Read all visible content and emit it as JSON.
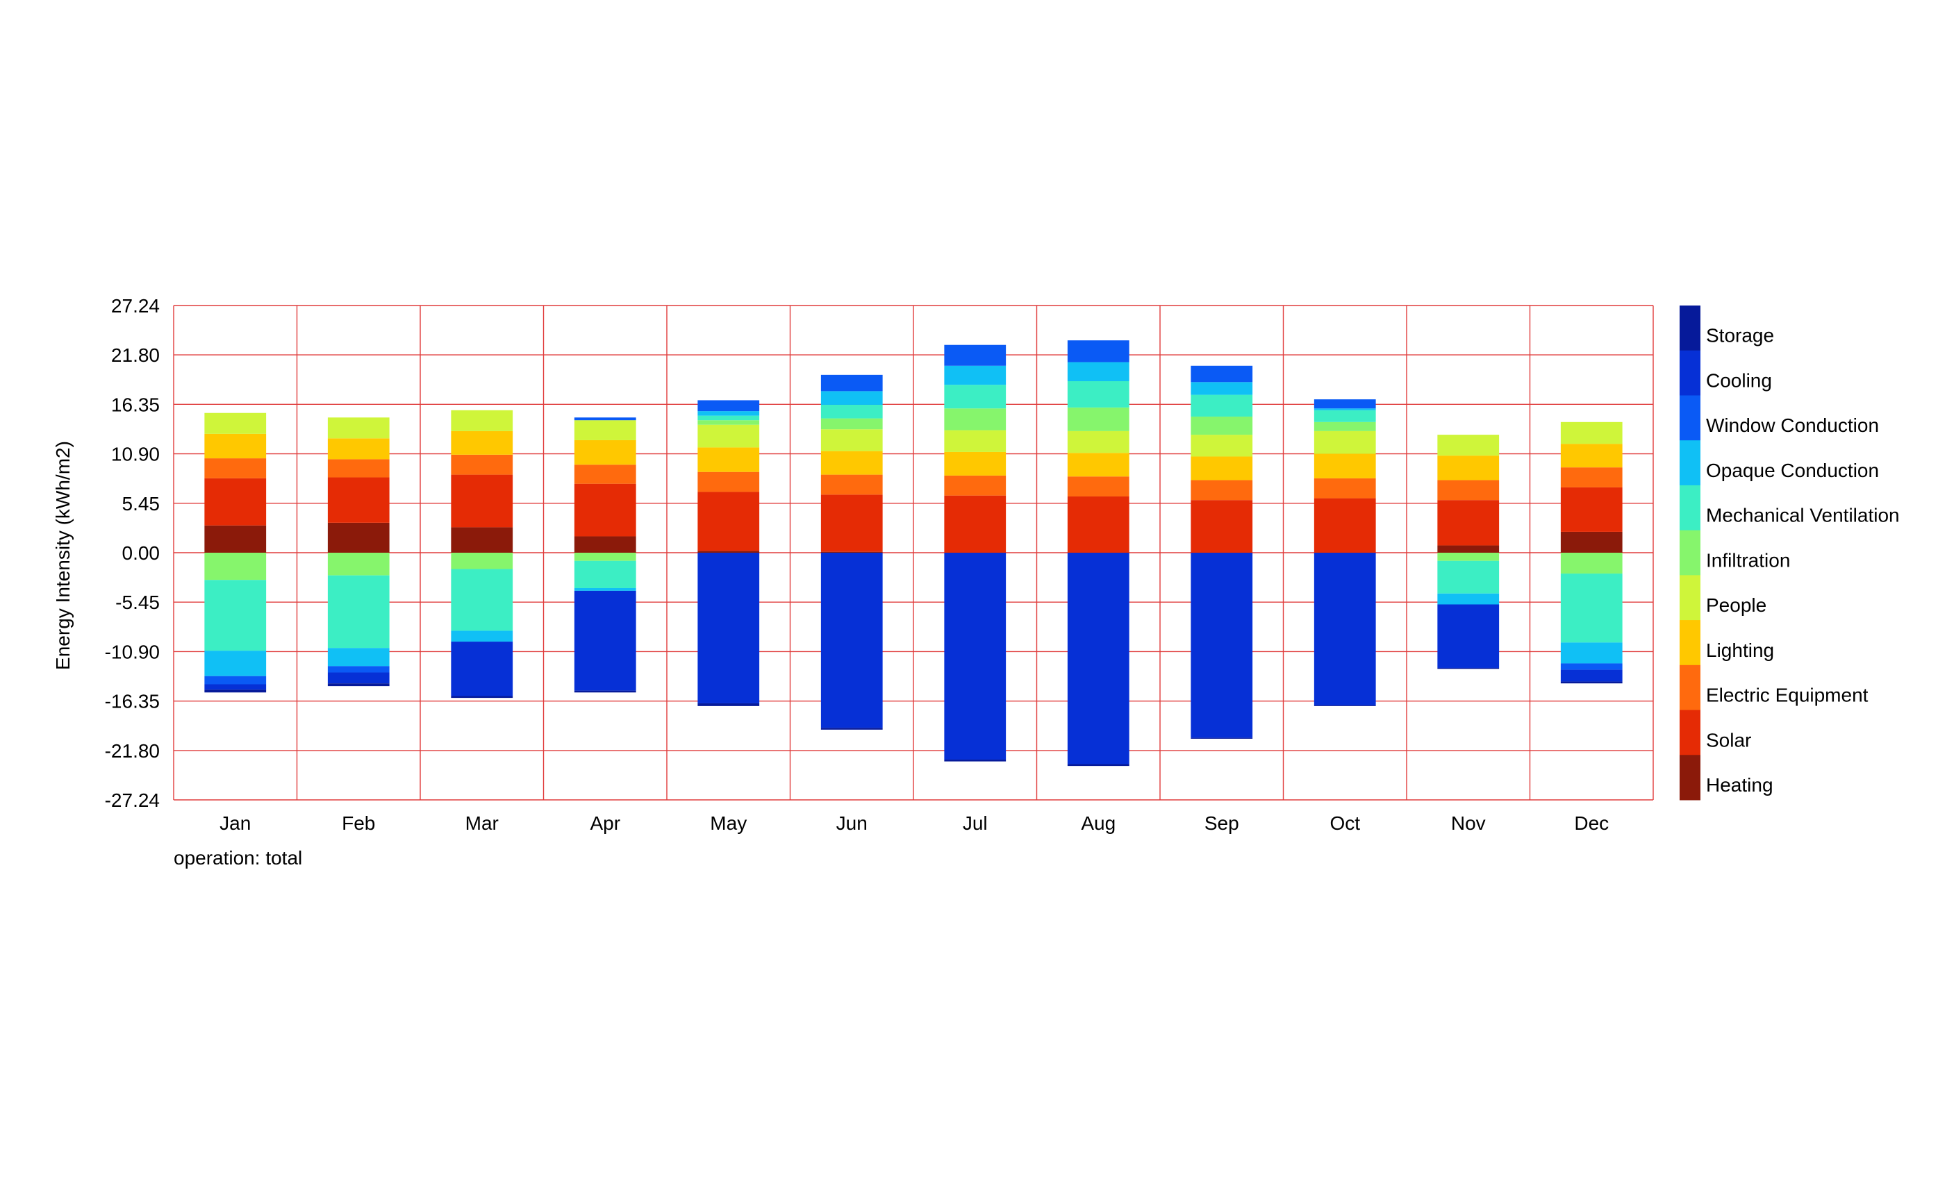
{
  "chart_data": {
    "type": "bar",
    "stacked": true,
    "title": "",
    "footnote": "operation: total",
    "xlabel": "",
    "ylabel": "Energy Intensity (kWh/m2)",
    "ylim": [
      -27.24,
      27.24
    ],
    "yticks": [
      "27.24",
      "21.80",
      "16.35",
      "10.90",
      "5.45",
      "0.00",
      "-5.45",
      "-10.90",
      "-16.35",
      "-21.80",
      "-27.24"
    ],
    "categories": [
      "Jan",
      "Feb",
      "Mar",
      "Apr",
      "May",
      "Jun",
      "Jul",
      "Aug",
      "Sep",
      "Oct",
      "Nov",
      "Dec"
    ],
    "grid": true,
    "legend_position": "right",
    "series": [
      {
        "name": "Heating",
        "color": "#8b1a0a",
        "values": [
          3.0,
          3.3,
          2.8,
          1.8,
          0.2,
          0.1,
          0.0,
          0.0,
          0.0,
          0.0,
          0.8,
          2.3
        ]
      },
      {
        "name": "Solar",
        "color": "#e52b05",
        "values": [
          5.2,
          5.0,
          5.8,
          5.8,
          6.5,
          6.3,
          6.3,
          6.2,
          5.8,
          6.0,
          5.0,
          4.9
        ]
      },
      {
        "name": "Electric Equipment",
        "color": "#ff6a0e",
        "values": [
          2.2,
          2.0,
          2.2,
          2.1,
          2.2,
          2.2,
          2.2,
          2.2,
          2.2,
          2.2,
          2.2,
          2.2
        ]
      },
      {
        "name": "Lighting",
        "color": "#ffc800",
        "values": [
          2.7,
          2.3,
          2.6,
          2.7,
          2.7,
          2.6,
          2.6,
          2.6,
          2.6,
          2.7,
          2.7,
          2.6
        ]
      },
      {
        "name": "People",
        "color": "#cff53a",
        "values": [
          2.3,
          2.3,
          2.3,
          2.2,
          2.5,
          2.4,
          2.4,
          2.4,
          2.4,
          2.5,
          2.3,
          2.4
        ]
      },
      {
        "name": "Infiltration",
        "color": "#86f56c",
        "values": [
          -3.0,
          -2.5,
          -1.8,
          -0.9,
          0.5,
          1.2,
          2.4,
          2.6,
          2.0,
          1.0,
          -0.9,
          -2.3
        ]
      },
      {
        "name": "Mechanical Ventilation",
        "color": "#3ceec4",
        "values": [
          -7.8,
          -8.0,
          -6.8,
          -3.0,
          0.5,
          1.5,
          2.6,
          2.9,
          2.4,
          1.3,
          -3.6,
          -7.6
        ]
      },
      {
        "name": "Opaque Conduction",
        "color": "#10c0f5",
        "values": [
          -2.8,
          -2.0,
          -1.2,
          -0.3,
          0.5,
          1.5,
          2.1,
          2.1,
          1.4,
          0.2,
          -1.2,
          -2.3
        ]
      },
      {
        "name": "Window Conduction",
        "color": "#0a5af5",
        "values": [
          -0.9,
          -0.7,
          0.0,
          0.3,
          1.2,
          1.8,
          2.3,
          2.4,
          1.8,
          1.0,
          0.0,
          -0.7
        ]
      },
      {
        "name": "Cooling",
        "color": "#0630d6",
        "values": [
          -0.6,
          -1.2,
          -6.0,
          -11.0,
          -16.6,
          -19.3,
          -22.8,
          -23.3,
          -20.4,
          -16.8,
          -7.0,
          -1.3
        ]
      },
      {
        "name": "Storage",
        "color": "#061a9a",
        "values": [
          -0.3,
          -0.3,
          -0.2,
          -0.2,
          -0.3,
          -0.2,
          -0.2,
          -0.2,
          -0.1,
          -0.1,
          -0.1,
          -0.2
        ]
      }
    ]
  }
}
